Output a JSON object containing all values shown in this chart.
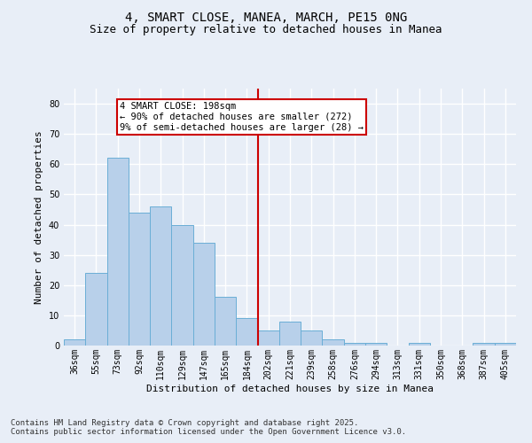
{
  "title": "4, SMART CLOSE, MANEA, MARCH, PE15 0NG",
  "subtitle": "Size of property relative to detached houses in Manea",
  "xlabel": "Distribution of detached houses by size in Manea",
  "ylabel": "Number of detached properties",
  "categories": [
    "36sqm",
    "55sqm",
    "73sqm",
    "92sqm",
    "110sqm",
    "129sqm",
    "147sqm",
    "165sqm",
    "184sqm",
    "202sqm",
    "221sqm",
    "239sqm",
    "258sqm",
    "276sqm",
    "294sqm",
    "313sqm",
    "331sqm",
    "350sqm",
    "368sqm",
    "387sqm",
    "405sqm"
  ],
  "values": [
    2,
    24,
    62,
    44,
    46,
    40,
    34,
    16,
    9,
    5,
    8,
    5,
    2,
    1,
    1,
    0,
    1,
    0,
    0,
    1,
    1
  ],
  "bar_color": "#b8d0ea",
  "bar_edge_color": "#6aaed6",
  "vline_color": "#cc0000",
  "ylim": [
    0,
    85
  ],
  "yticks": [
    0,
    10,
    20,
    30,
    40,
    50,
    60,
    70,
    80
  ],
  "annotation_title": "4 SMART CLOSE: 198sqm",
  "annotation_line1": "← 90% of detached houses are smaller (272)",
  "annotation_line2": "9% of semi-detached houses are larger (28) →",
  "footer1": "Contains HM Land Registry data © Crown copyright and database right 2025.",
  "footer2": "Contains public sector information licensed under the Open Government Licence v3.0.",
  "bg_color": "#e8eef7",
  "grid_color": "#ffffff",
  "title_fontsize": 10,
  "subtitle_fontsize": 9,
  "annotation_fontsize": 7.5,
  "footer_fontsize": 6.5,
  "tick_fontsize": 7,
  "ylabel_fontsize": 8,
  "xlabel_fontsize": 8
}
